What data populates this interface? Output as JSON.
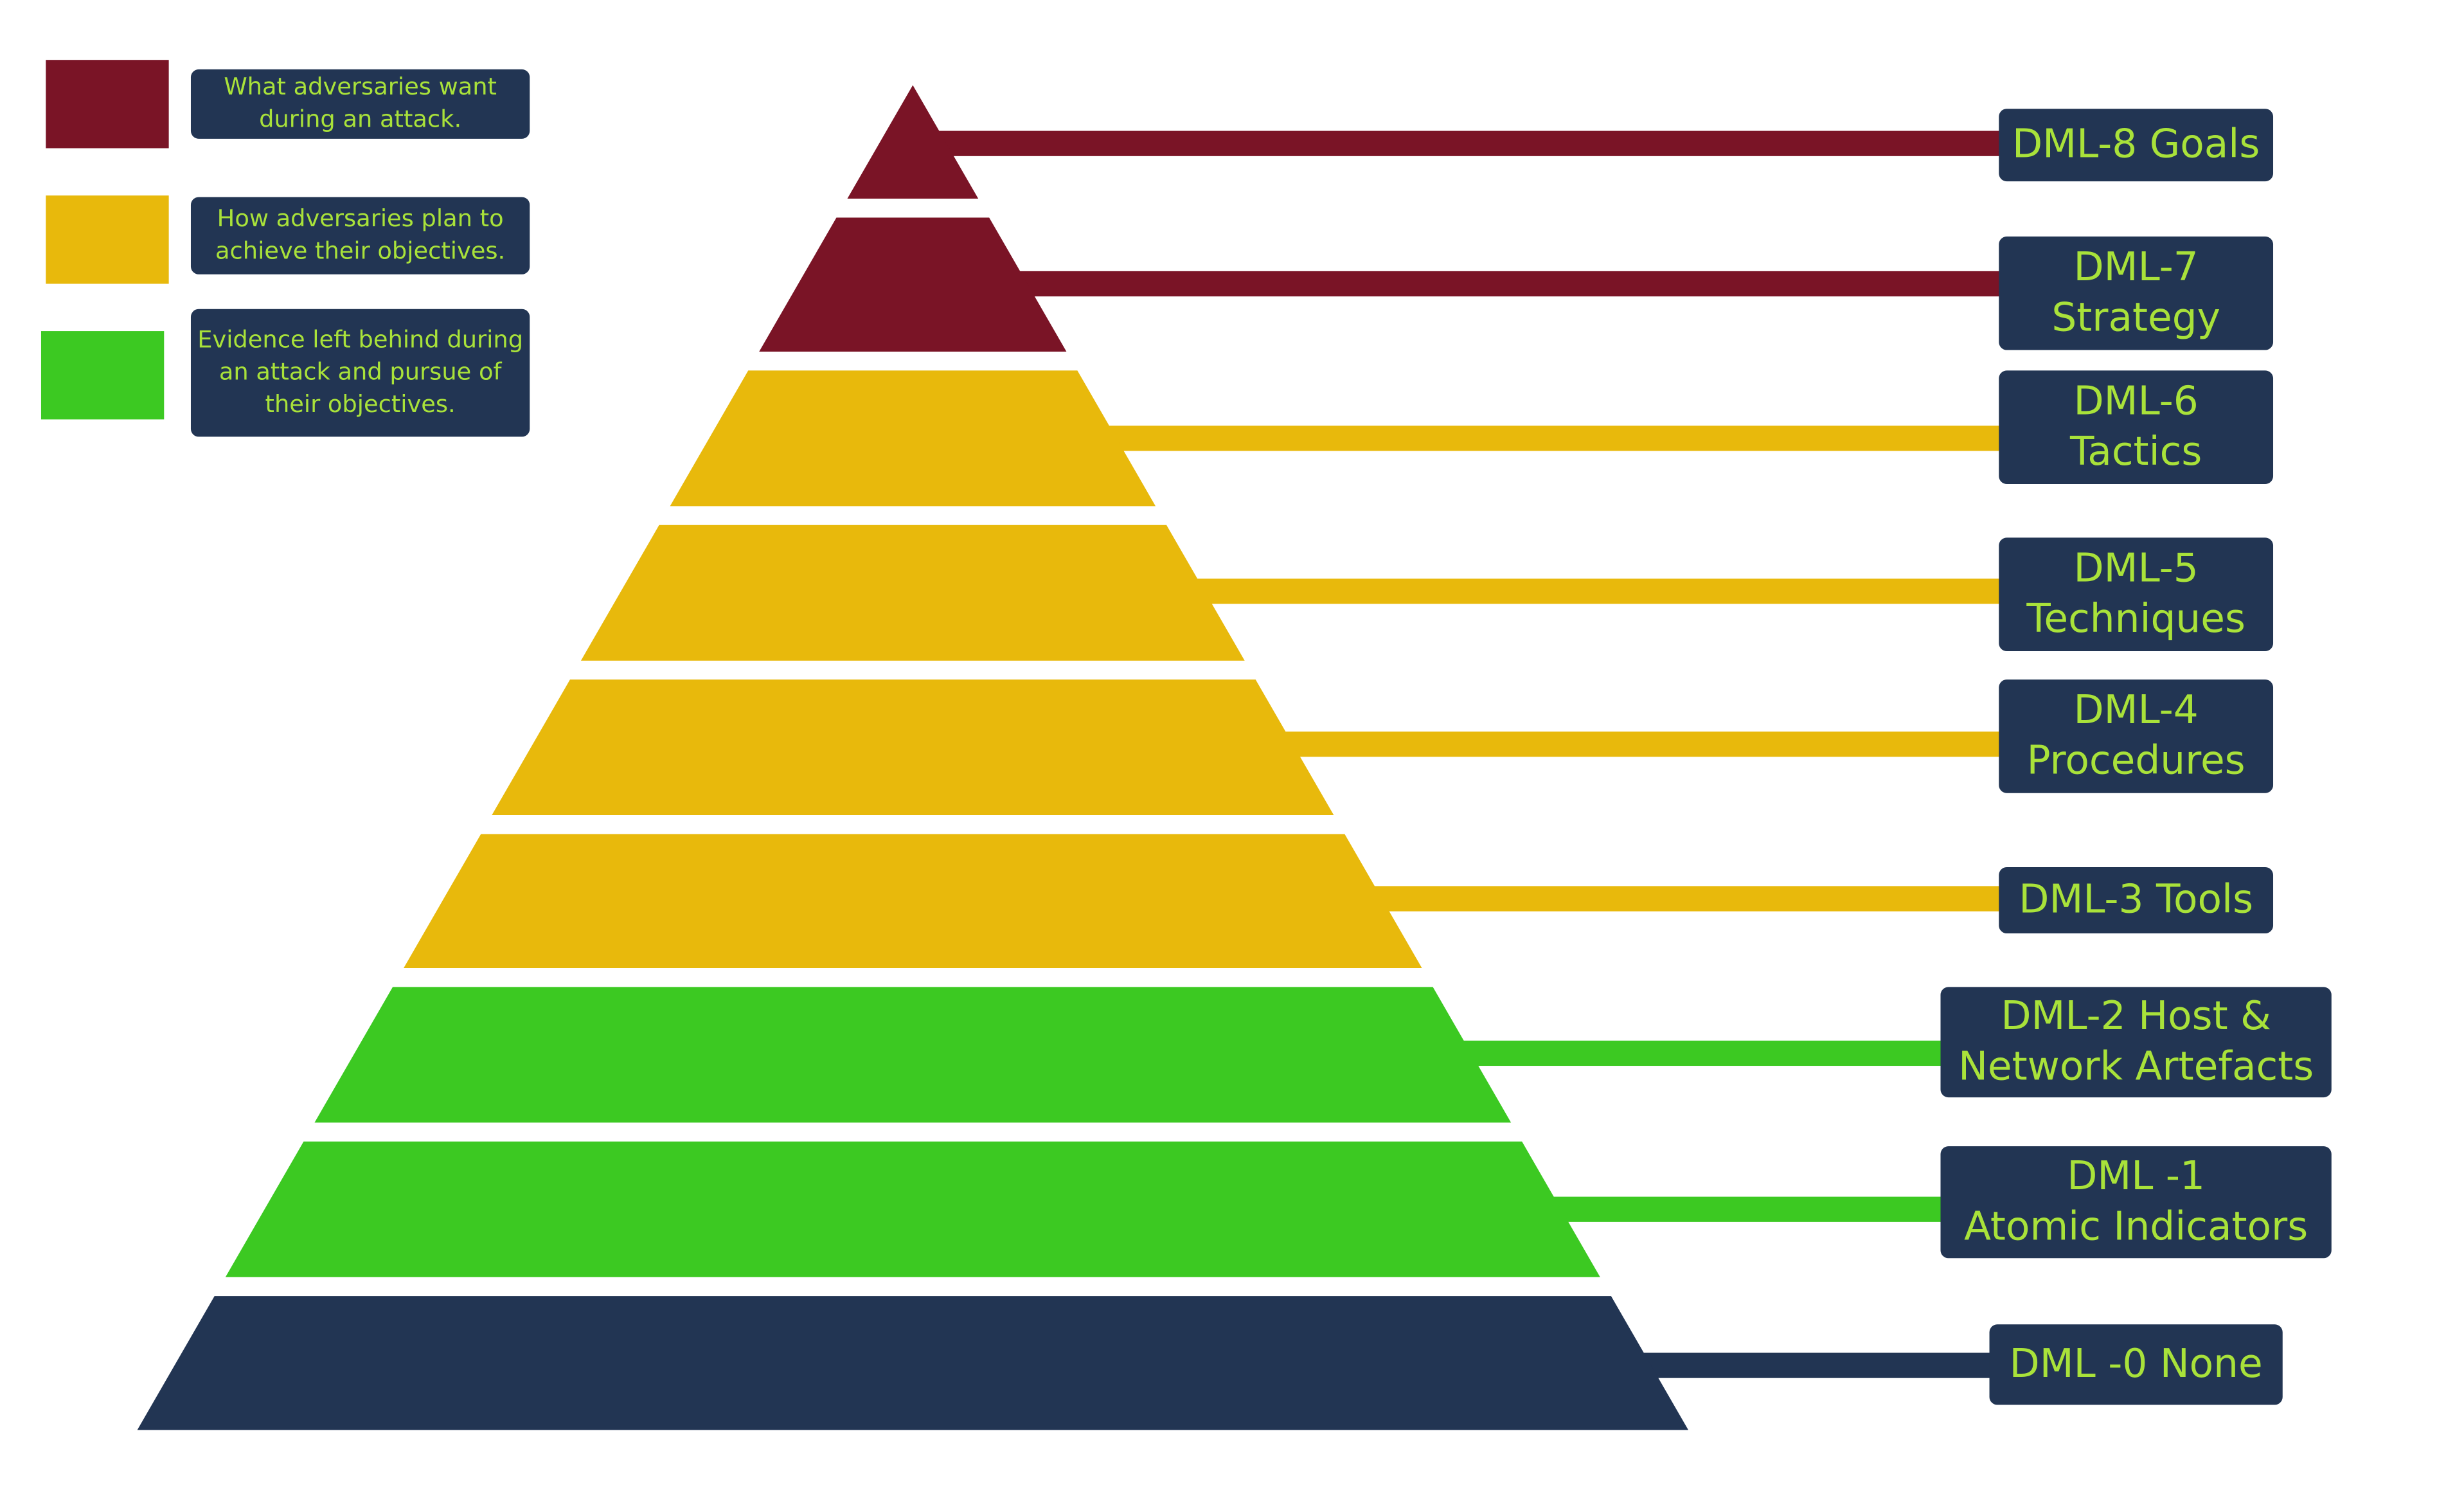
{
  "legend": [
    {
      "lines": [
        "What adversaries want",
        "during an attack."
      ]
    },
    {
      "lines": [
        "How adversaries plan to",
        "achieve their objectives."
      ]
    },
    {
      "lines": [
        "Evidence left behind during",
        "an attack and pursue of",
        "their objectives."
      ]
    }
  ],
  "levels": [
    {
      "lines": [
        "DML-8 Goals"
      ]
    },
    {
      "lines": [
        "DML-7",
        "Strategy"
      ]
    },
    {
      "lines": [
        "DML-6",
        "Tactics"
      ]
    },
    {
      "lines": [
        "DML-5",
        "Techniques"
      ]
    },
    {
      "lines": [
        "DML-4",
        "Procedures"
      ]
    },
    {
      "lines": [
        "DML-3 Tools"
      ]
    },
    {
      "lines": [
        "DML-2 Host &",
        "Network Artefacts"
      ]
    },
    {
      "lines": [
        "DML -1",
        "Atomic Indicators"
      ]
    },
    {
      "lines": [
        "DML -0 None"
      ]
    }
  ]
}
